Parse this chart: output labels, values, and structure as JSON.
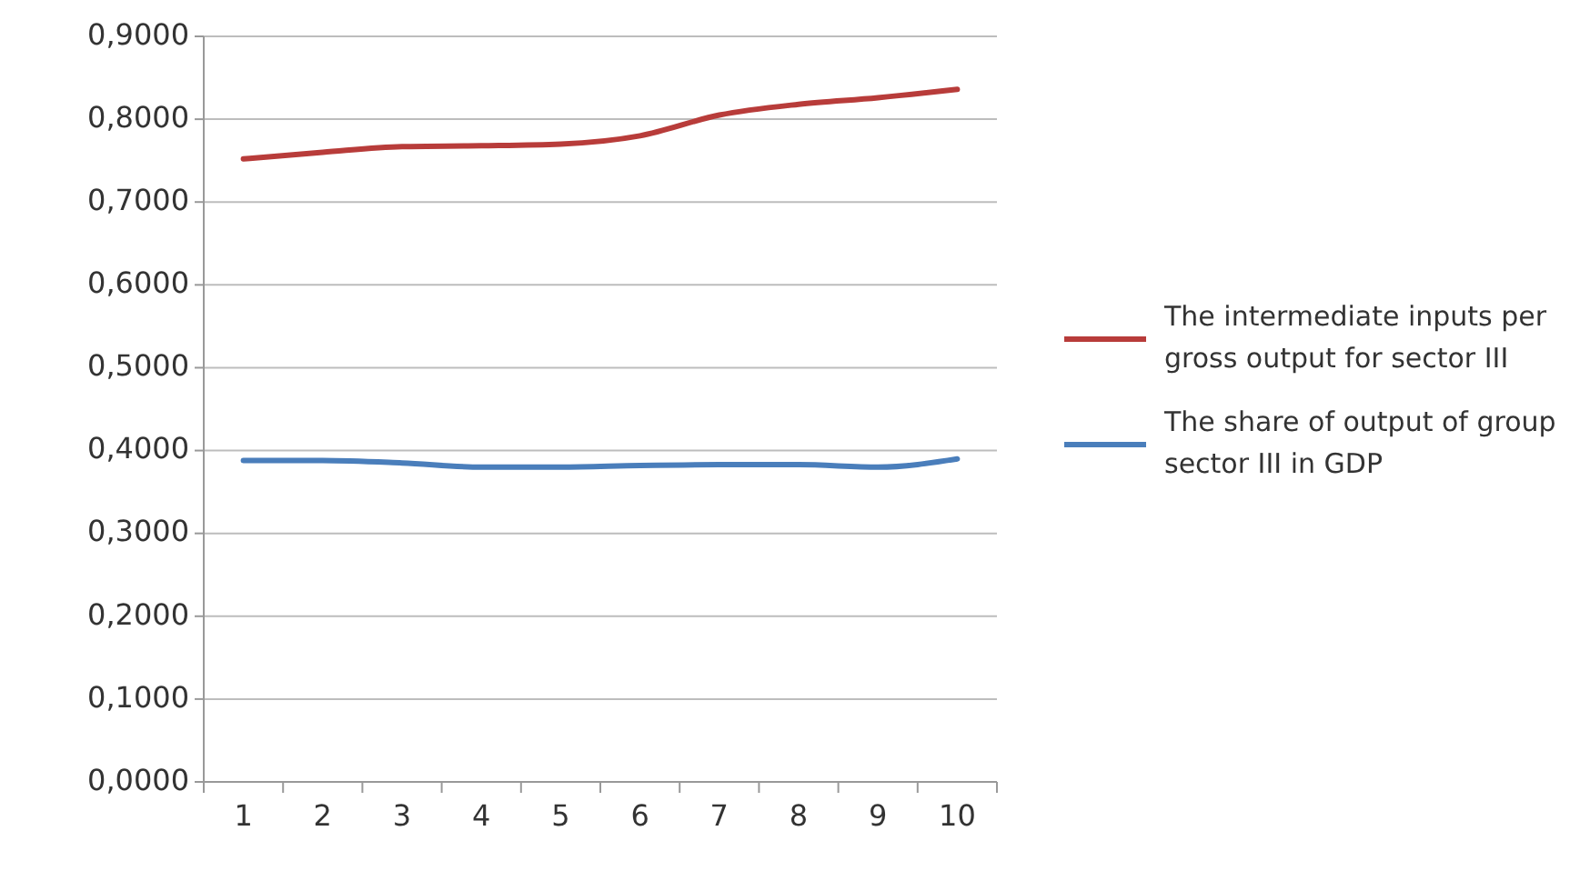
{
  "chart_data": {
    "type": "line",
    "categories": [
      "1",
      "2",
      "3",
      "4",
      "5",
      "6",
      "7",
      "8",
      "9",
      "10"
    ],
    "series": [
      {
        "name": "The intermediate inputs per gross output for sector III",
        "color": "#b83c3a",
        "values": [
          0.752,
          0.76,
          0.767,
          0.768,
          0.77,
          0.78,
          0.805,
          0.818,
          0.826,
          0.836
        ]
      },
      {
        "name": "The share of output of group sector III in GDP",
        "color": "#4a7ebb",
        "values": [
          0.388,
          0.388,
          0.385,
          0.38,
          0.38,
          0.382,
          0.383,
          0.383,
          0.38,
          0.39
        ]
      }
    ],
    "ylim": [
      0,
      0.9
    ],
    "yticks": [
      {
        "value": 0,
        "label": "0,0000"
      },
      {
        "value": 0.1,
        "label": "0,1000"
      },
      {
        "value": 0.2,
        "label": "0,2000"
      },
      {
        "value": 0.3,
        "label": "0,3000"
      },
      {
        "value": 0.4,
        "label": "0,4000"
      },
      {
        "value": 0.5,
        "label": "0,5000"
      },
      {
        "value": 0.6,
        "label": "0,6000"
      },
      {
        "value": 0.7,
        "label": "0,7000"
      },
      {
        "value": 0.8,
        "label": "0,8000"
      },
      {
        "value": 0.9,
        "label": "0,9000"
      }
    ],
    "grid": "y",
    "legend": "right",
    "marker": "none",
    "line_style": "solid"
  }
}
